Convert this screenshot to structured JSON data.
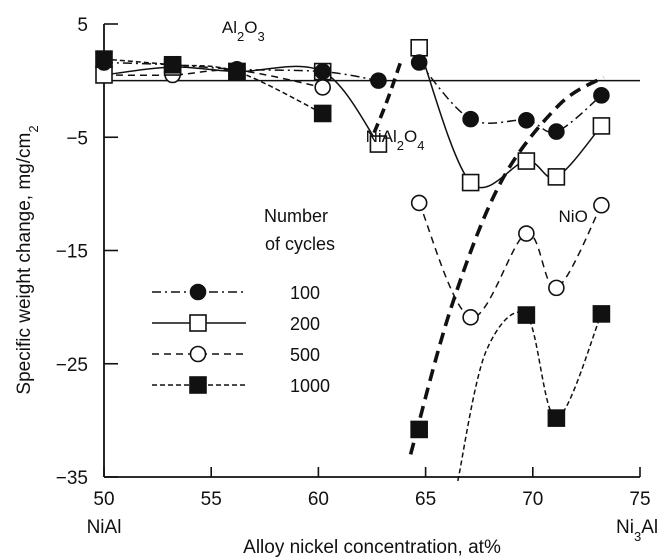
{
  "chart_data": {
    "type": "line",
    "xlabel": "Alloy nickel concentration, at%",
    "ylabel": "Specific weight change, mg/cm2",
    "xlim": [
      50,
      75
    ],
    "ylim": [
      -35,
      5
    ],
    "x_ticks": [
      50,
      55,
      60,
      65,
      70,
      75
    ],
    "y_ticks": [
      5,
      -5,
      -15,
      -25,
      -35
    ],
    "x_end_labels": {
      "left": "NiAl",
      "right": "Ni3Al"
    },
    "grid": false,
    "legend": {
      "title_line1": "Number",
      "title_line2": "of cycles",
      "placement": "center-left"
    },
    "annotations": [
      {
        "text": "Al2O3",
        "x": 55.5,
        "y": 4.2
      },
      {
        "text": "NiAl2O4",
        "x": 62.2,
        "y": -5.4
      },
      {
        "text": "NiO",
        "x": 71.2,
        "y": -12.5
      }
    ],
    "series": [
      {
        "name": "100",
        "marker": "filled-circle",
        "line": "dash-dot",
        "left": {
          "x": [
            50,
            53.2,
            56.2,
            60.2,
            62.8
          ],
          "y": [
            1.6,
            1.4,
            1.0,
            0.8,
            0.0
          ]
        },
        "right": {
          "x": [
            64.7,
            67.1,
            69.7,
            71.1,
            73.2
          ],
          "y": [
            1.6,
            -3.4,
            -3.5,
            -4.5,
            -1.3
          ]
        }
      },
      {
        "name": "200",
        "marker": "open-square",
        "line": "solid",
        "left": {
          "x": [
            50,
            53.2,
            56.2,
            60.2,
            62.8
          ],
          "y": [
            0.5,
            1.2,
            0.8,
            0.8,
            -5.6
          ]
        },
        "right": {
          "x": [
            64.7,
            67.1,
            69.7,
            71.1,
            73.2
          ],
          "y": [
            2.9,
            -9.0,
            -7.1,
            -8.5,
            -4.0
          ]
        }
      },
      {
        "name": "500",
        "marker": "open-circle",
        "line": "dashed",
        "left": {
          "x": [
            50,
            53.2,
            56.2,
            60.2
          ],
          "y": [
            0.5,
            0.5,
            0.9,
            -0.6
          ]
        },
        "right": {
          "x": [
            64.7,
            67.1,
            69.7,
            71.1,
            73.2
          ],
          "y": [
            -10.8,
            -20.9,
            -13.5,
            -18.3,
            -11.0
          ]
        }
      },
      {
        "name": "1000",
        "marker": "filled-square",
        "line": "short-dash",
        "left": {
          "x": [
            50,
            53.2,
            56.2,
            60.2
          ],
          "y": [
            1.9,
            1.4,
            0.8,
            -2.9
          ]
        },
        "right": {
          "x": [
            64.7,
            69.7,
            71.1,
            73.2
          ],
          "y": [
            -30.8,
            -20.7,
            -29.8,
            -20.6
          ]
        }
      }
    ]
  }
}
